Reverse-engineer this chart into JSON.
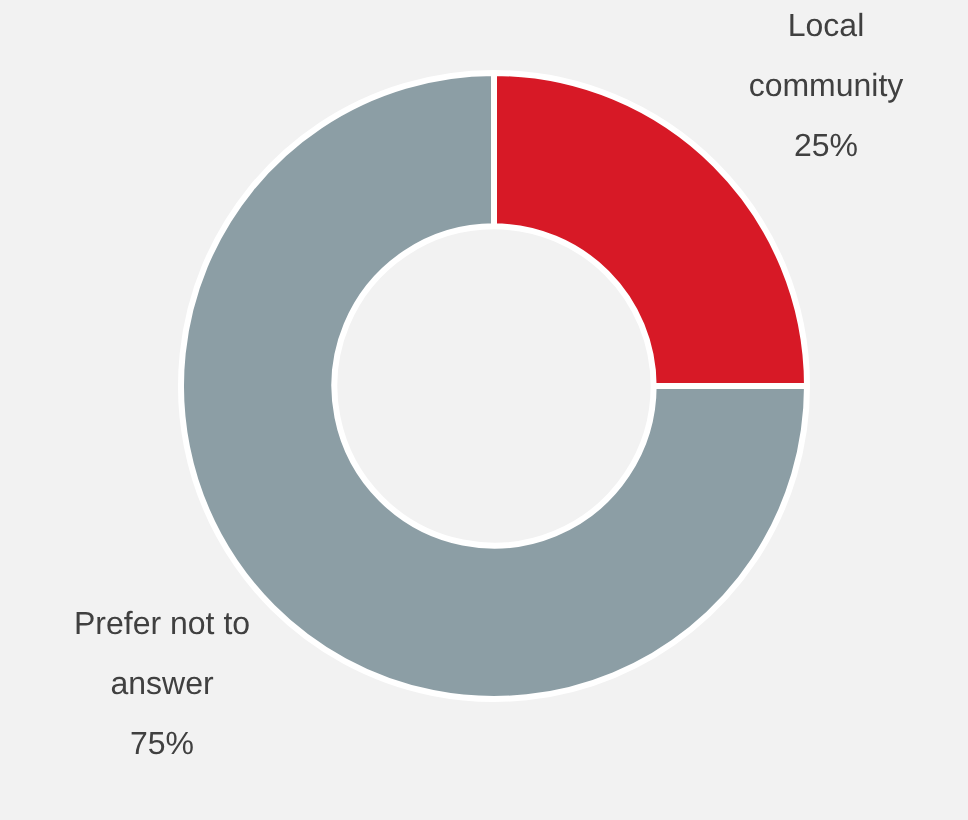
{
  "chart_data": {
    "type": "donut",
    "categories": [
      "Local community",
      "Prefer not to answer"
    ],
    "values": [
      25,
      75
    ],
    "colors": [
      "#d71926",
      "#8c9ea5"
    ],
    "value_labels": [
      "25%",
      "75%"
    ],
    "legend": false
  }
}
